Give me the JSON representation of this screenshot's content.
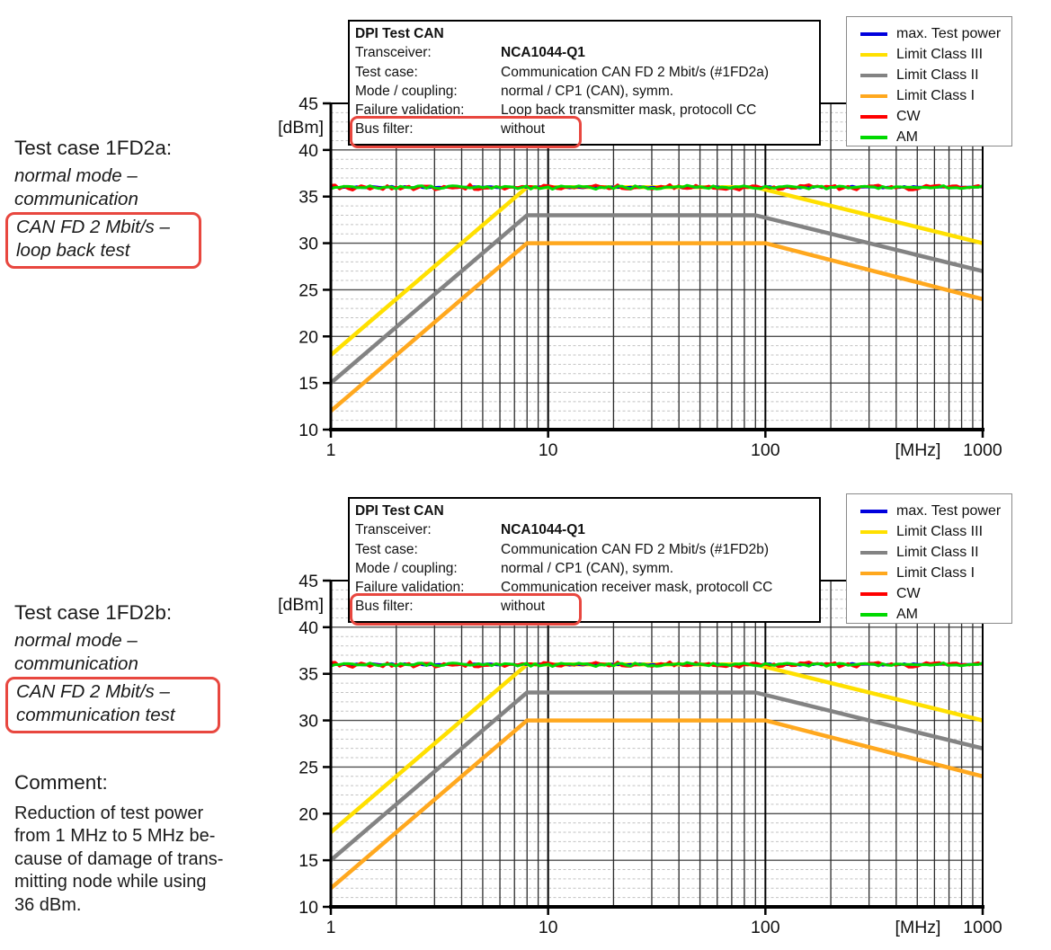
{
  "highlight_color": "#e8473f",
  "legend": {
    "entries": [
      {
        "label": "max. Test power",
        "color": "#0000dd"
      },
      {
        "label": "Limit Class III",
        "color": "#ffe000"
      },
      {
        "label": "Limit Class II",
        "color": "#838383"
      },
      {
        "label": "Limit Class I",
        "color": "#ffa81e"
      },
      {
        "label": "CW",
        "color": "#ff0000"
      },
      {
        "label": "AM",
        "color": "#00d900"
      }
    ]
  },
  "panels": [
    {
      "side": {
        "title": "Test case 1FD2a:",
        "line1": "normal mode –",
        "line2": "communication",
        "boxed1": "CAN FD 2 Mbit/s –",
        "boxed2": "loop back test"
      },
      "info": {
        "title": "DPI Test CAN",
        "rows": [
          {
            "label": "Transceiver:",
            "value": "NCA1044-Q1"
          },
          {
            "label": "Test case:",
            "value": "Communication CAN FD 2 Mbit/s (#1FD2a)"
          },
          {
            "label": "Mode / coupling:",
            "value": "normal / CP1 (CAN), symm."
          },
          {
            "label": "Failure validation:",
            "value": "Loop back transmitter mask, protocoll CC"
          }
        ],
        "bus": {
          "label": "Bus filter:",
          "value": "without"
        }
      }
    },
    {
      "side": {
        "title": "Test case 1FD2b:",
        "line1": "normal mode –",
        "line2": "communication",
        "boxed1": "CAN FD 2 Mbit/s –",
        "boxed2": "communication test"
      },
      "info": {
        "title": "DPI Test CAN",
        "rows": [
          {
            "label": "Transceiver:",
            "value": "NCA1044-Q1"
          },
          {
            "label": "Test case:",
            "value": "Communication CAN FD 2 Mbit/s (#1FD2b)"
          },
          {
            "label": "Mode / coupling:",
            "value": "normal / CP1 (CAN), symm."
          },
          {
            "label": "Failure validation:",
            "value": "Communication receiver mask, protocoll CC"
          }
        ],
        "bus": {
          "label": "Bus filter:",
          "value": "without"
        }
      }
    }
  ],
  "comment": {
    "title": "Comment:",
    "lines": [
      "Reduction of test power",
      "from 1 MHz to 5 MHz be-",
      "cause of damage of trans-",
      "mitting node while using",
      "36 dBm."
    ]
  },
  "chart_data": [
    {
      "type": "line",
      "test_case": "#1FD2a",
      "x": {
        "scale": "log",
        "min": 1,
        "max": 1000,
        "unit_label": "[MHz]",
        "ticks": [
          1,
          10,
          100,
          1000
        ]
      },
      "y": {
        "min": 10,
        "max": 45,
        "unit_label": "[dBm]",
        "ticks": [
          45,
          40,
          35,
          30,
          25,
          20,
          15,
          10
        ],
        "minor_step": 1
      },
      "series": [
        {
          "name": "max. Test power",
          "color": "#0000dd",
          "noisy": true,
          "noise_amp": 0.12,
          "points": [
            [
              1,
              36
            ],
            [
              1000,
              36
            ]
          ]
        },
        {
          "name": "Limit Class III",
          "color": "#ffe000",
          "points": [
            [
              1,
              18
            ],
            [
              8,
              36
            ],
            [
              90,
              36
            ],
            [
              1000,
              30
            ]
          ]
        },
        {
          "name": "Limit Class II",
          "color": "#838383",
          "points": [
            [
              1,
              15
            ],
            [
              8,
              33
            ],
            [
              90,
              33
            ],
            [
              1000,
              27
            ]
          ]
        },
        {
          "name": "Limit Class I",
          "color": "#ffa81e",
          "points": [
            [
              1,
              12
            ],
            [
              8,
              30
            ],
            [
              100,
              30
            ],
            [
              1000,
              24
            ]
          ]
        },
        {
          "name": "CW",
          "color": "#ff0000",
          "noisy": true,
          "noise_amp": 0.34,
          "points": [
            [
              1,
              36
            ],
            [
              1000,
              36
            ]
          ]
        },
        {
          "name": "AM",
          "color": "#00d900",
          "noisy": true,
          "noise_amp": 0.24,
          "points": [
            [
              1,
              36
            ],
            [
              1000,
              36
            ]
          ]
        }
      ]
    },
    {
      "type": "line",
      "test_case": "#1FD2b",
      "x": {
        "scale": "log",
        "min": 1,
        "max": 1000,
        "unit_label": "[MHz]",
        "ticks": [
          1,
          10,
          100,
          1000
        ]
      },
      "y": {
        "min": 10,
        "max": 45,
        "unit_label": "[dBm]",
        "ticks": [
          45,
          40,
          35,
          30,
          25,
          20,
          15,
          10
        ],
        "minor_step": 1
      },
      "series": [
        {
          "name": "max. Test power",
          "color": "#0000dd",
          "noisy": true,
          "noise_amp": 0.12,
          "points": [
            [
              1,
              36
            ],
            [
              1000,
              36
            ]
          ]
        },
        {
          "name": "Limit Class III",
          "color": "#ffe000",
          "points": [
            [
              1,
              18
            ],
            [
              8,
              36
            ],
            [
              90,
              36
            ],
            [
              1000,
              30
            ]
          ]
        },
        {
          "name": "Limit Class II",
          "color": "#838383",
          "points": [
            [
              1,
              15
            ],
            [
              8,
              33
            ],
            [
              90,
              33
            ],
            [
              1000,
              27
            ]
          ]
        },
        {
          "name": "Limit Class I",
          "color": "#ffa81e",
          "points": [
            [
              1,
              12
            ],
            [
              8,
              30
            ],
            [
              100,
              30
            ],
            [
              1000,
              24
            ]
          ]
        },
        {
          "name": "CW",
          "color": "#ff0000",
          "noisy": true,
          "noise_amp": 0.34,
          "points": [
            [
              1,
              36
            ],
            [
              1000,
              36
            ]
          ]
        },
        {
          "name": "AM",
          "color": "#00d900",
          "noisy": true,
          "noise_amp": 0.24,
          "points": [
            [
              1,
              36
            ],
            [
              1000,
              36
            ]
          ]
        }
      ]
    }
  ]
}
